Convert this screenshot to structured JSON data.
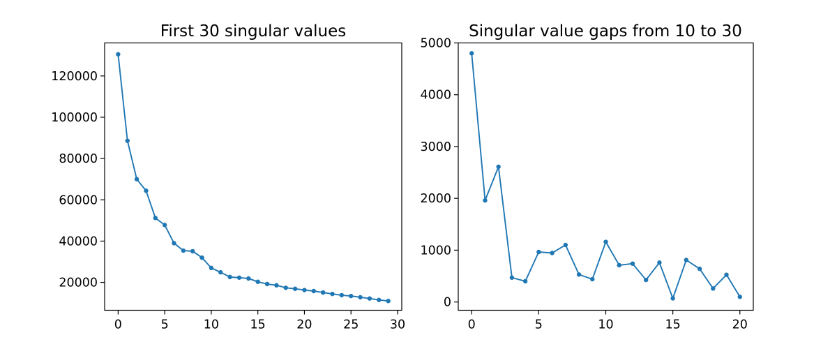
{
  "figure": {
    "background": "#ffffff",
    "axis_color": "#000000",
    "series_color": "#1f77b4"
  },
  "chart_data": [
    {
      "type": "line",
      "title": "First 30 singular values",
      "marker": "circle",
      "line_color": "#1f77b4",
      "x": [
        0,
        1,
        2,
        3,
        4,
        5,
        6,
        7,
        8,
        9,
        10,
        11,
        12,
        13,
        14,
        15,
        16,
        17,
        18,
        19,
        20,
        21,
        22,
        23,
        24,
        25,
        26,
        27,
        28,
        29
      ],
      "values": [
        130500,
        88600,
        70000,
        64400,
        51200,
        47800,
        39000,
        35400,
        35100,
        32000,
        27000,
        24900,
        22600,
        22300,
        21900,
        20300,
        19200,
        18600,
        17400,
        16900,
        16300,
        15800,
        15100,
        14400,
        13800,
        13400,
        12800,
        12200,
        11500,
        11000
      ],
      "xlabel": "",
      "ylabel": "",
      "xticks": [
        0,
        5,
        10,
        15,
        20,
        25,
        30
      ],
      "yticks": [
        20000,
        40000,
        60000,
        80000,
        100000,
        120000
      ],
      "xlim": [
        -1.45,
        30.45
      ],
      "ylim": [
        6500,
        136000
      ],
      "grid": false,
      "legend": null
    },
    {
      "type": "line",
      "title": "Singular value gaps from 10 to 30",
      "marker": "circle",
      "line_color": "#1f77b4",
      "x": [
        0,
        1,
        2,
        3,
        4,
        5,
        6,
        7,
        8,
        9,
        10,
        11,
        12,
        13,
        14,
        15,
        16,
        17,
        18,
        19,
        20
      ],
      "values": [
        4800,
        1960,
        2610,
        470,
        400,
        965,
        945,
        1100,
        530,
        440,
        1160,
        710,
        740,
        425,
        760,
        70,
        810,
        640,
        260,
        525,
        100
      ],
      "xlabel": "",
      "ylabel": "",
      "xticks": [
        0,
        5,
        10,
        15,
        20
      ],
      "yticks": [
        0,
        1000,
        2000,
        3000,
        4000,
        5000
      ],
      "xlim": [
        -1,
        21
      ],
      "ylim": [
        -160,
        5000
      ],
      "grid": false,
      "legend": null
    }
  ]
}
